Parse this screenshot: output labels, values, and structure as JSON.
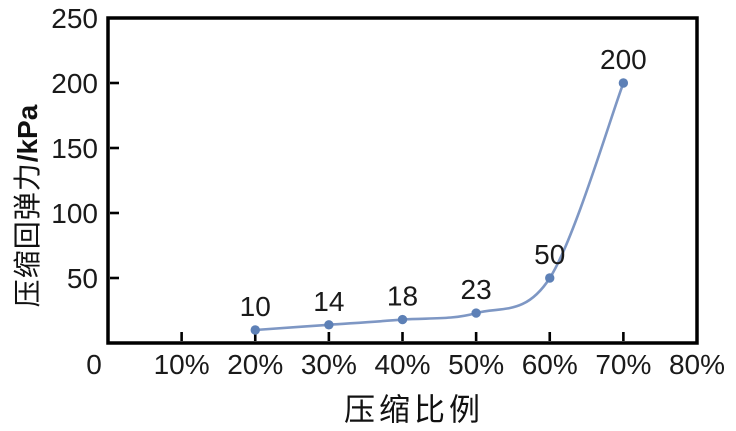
{
  "figure": {
    "background": "#ffffff"
  },
  "chart_data": {
    "type": "line",
    "title": "",
    "xlabel": "压缩比例",
    "ylabel": "压缩回弹力/kPa",
    "ylabel_cjk": "压缩回弹力",
    "ylabel_unit": "/kPa",
    "x": [
      20,
      30,
      40,
      50,
      60,
      70
    ],
    "values": [
      10,
      14,
      18,
      23,
      50,
      200
    ],
    "point_labels": [
      "10",
      "14",
      "18",
      "23",
      "50",
      "200"
    ],
    "x_tick_values": [
      0,
      10,
      20,
      30,
      40,
      50,
      60,
      70,
      80
    ],
    "x_tick_labels": [
      "0",
      "10%",
      "20%",
      "30%",
      "40%",
      "50%",
      "60%",
      "70%",
      "80%"
    ],
    "y_tick_values": [
      50,
      100,
      150,
      200,
      250
    ],
    "y_tick_labels": [
      "50",
      "100",
      "150",
      "200",
      "250"
    ],
    "xlim": [
      0,
      80
    ],
    "ylim": [
      0,
      250
    ],
    "grid": false,
    "legend": null,
    "line_color": "#7e97c4",
    "marker_color": "#5d80b6",
    "axis_color": "#000000",
    "text_color": "#1a1a1a"
  }
}
